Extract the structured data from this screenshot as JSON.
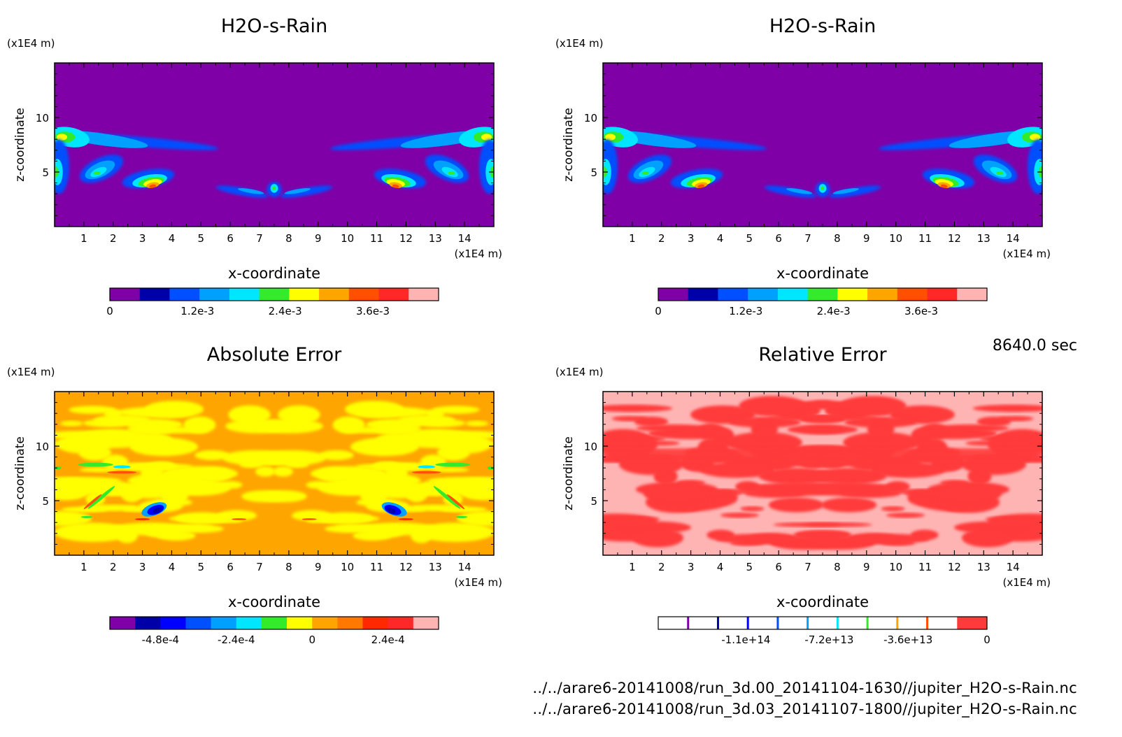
{
  "time_label": "8640.0 sec",
  "files": [
    "../../arare6-20141008/run_3d.00_20141104-1630//jupiter_H2O-s-Rain.nc",
    "../../arare6-20141008/run_3d.03_20141107-1800//jupiter_H2O-s-Rain.nc"
  ],
  "chart_data": [
    {
      "type": "heatmap",
      "title": "H2O-s-Rain",
      "xlabel": "x-coordinate",
      "ylabel": "z-coordinate",
      "x_unit": "(x1E4 m)",
      "y_unit": "(x1E4 m)",
      "xlim": [
        0,
        15
      ],
      "ylim": [
        0,
        15
      ],
      "x_ticks": [
        "1",
        "2",
        "3",
        "4",
        "5",
        "6",
        "7",
        "8",
        "9",
        "10",
        "11",
        "12",
        "13",
        "14"
      ],
      "y_ticks": [
        "5",
        "10"
      ],
      "background_color": "#7f00a7",
      "colorbar": {
        "colors": [
          "#7f00a7",
          "#0000a8",
          "#0050ff",
          "#00a0ff",
          "#00e6ff",
          "#33ea2b",
          "#ffff00",
          "#ffa500",
          "#ff5000",
          "#ff2828",
          "#ffb4b4"
        ],
        "tick_labels": [
          "0",
          "1.2e-3",
          "2.4e-3",
          "3.6e-3"
        ],
        "tick_values": [
          0,
          0.0012,
          0.0024,
          0.0036
        ],
        "range": [
          0,
          0.0045
        ]
      }
    },
    {
      "type": "heatmap",
      "title": "H2O-s-Rain",
      "xlabel": "x-coordinate",
      "ylabel": "z-coordinate",
      "x_unit": "(x1E4 m)",
      "y_unit": "(x1E4 m)",
      "xlim": [
        0,
        15
      ],
      "ylim": [
        0,
        15
      ],
      "x_ticks": [
        "1",
        "2",
        "3",
        "4",
        "5",
        "6",
        "7",
        "8",
        "9",
        "10",
        "11",
        "12",
        "13",
        "14"
      ],
      "y_ticks": [
        "5",
        "10"
      ],
      "background_color": "#7f00a7",
      "colorbar": {
        "colors": [
          "#7f00a7",
          "#0000a8",
          "#0050ff",
          "#00a0ff",
          "#00e6ff",
          "#33ea2b",
          "#ffff00",
          "#ffa500",
          "#ff5000",
          "#ff2828",
          "#ffb4b4"
        ],
        "tick_labels": [
          "0",
          "1.2e-3",
          "2.4e-3",
          "3.6e-3"
        ],
        "tick_values": [
          0,
          0.0012,
          0.0024,
          0.0036
        ],
        "range": [
          0,
          0.0045
        ]
      }
    },
    {
      "type": "heatmap",
      "title": "Absolute Error",
      "xlabel": "x-coordinate",
      "ylabel": "z-coordinate",
      "x_unit": "(x1E4 m)",
      "y_unit": "(x1E4 m)",
      "xlim": [
        0,
        15
      ],
      "ylim": [
        0,
        15
      ],
      "x_ticks": [
        "1",
        "2",
        "3",
        "4",
        "5",
        "6",
        "7",
        "8",
        "9",
        "10",
        "11",
        "12",
        "13",
        "14"
      ],
      "y_ticks": [
        "5",
        "10"
      ],
      "background_color": "#ffa500",
      "colorbar": {
        "colors": [
          "#7f00a7",
          "#0000a8",
          "#0000ff",
          "#0050ff",
          "#00a0ff",
          "#00e6ff",
          "#33ea2b",
          "#ffff00",
          "#ffa500",
          "#ff7800",
          "#ff2800",
          "#ff2828",
          "#ffb4b4"
        ],
        "tick_labels": [
          "-4.8e-4",
          "-2.4e-4",
          "0",
          "2.4e-4"
        ],
        "tick_values": [
          -0.00048,
          -0.00024,
          0,
          0.00024
        ],
        "range": [
          -0.00064,
          0.0004
        ]
      }
    },
    {
      "type": "heatmap",
      "title": "Relative Error",
      "xlabel": "x-coordinate",
      "ylabel": "z-coordinate",
      "x_unit": "(x1E4 m)",
      "y_unit": "(x1E4 m)",
      "xlim": [
        0,
        15
      ],
      "ylim": [
        0,
        15
      ],
      "x_ticks": [
        "1",
        "2",
        "3",
        "4",
        "5",
        "6",
        "7",
        "8",
        "9",
        "10",
        "11",
        "12",
        "13",
        "14"
      ],
      "y_ticks": [
        "5",
        "10"
      ],
      "background_color": "#ffb4b4",
      "colorbar": {
        "colors": [
          "#ffffff",
          "#ffffff",
          "#ffffff",
          "#ffffff",
          "#ffffff",
          "#ffffff",
          "#ffffff",
          "#ffffff",
          "#ffffff",
          "#ffffff",
          "#ff3a3a"
        ],
        "line_colors": [
          "#7f00a7",
          "#0000a8",
          "#0000ff",
          "#0050ff",
          "#00a0ff",
          "#00e6ff",
          "#33ea2b",
          "#ffa500",
          "#ff5000"
        ],
        "tick_labels": [
          "-1.1e+14",
          "-7.2e+13",
          "-3.6e+13",
          "0"
        ],
        "tick_values": [
          -110000000000000.0,
          -72000000000000.0,
          -36000000000000.0,
          0
        ],
        "range": [
          -150000000000000.0,
          0
        ]
      }
    }
  ]
}
